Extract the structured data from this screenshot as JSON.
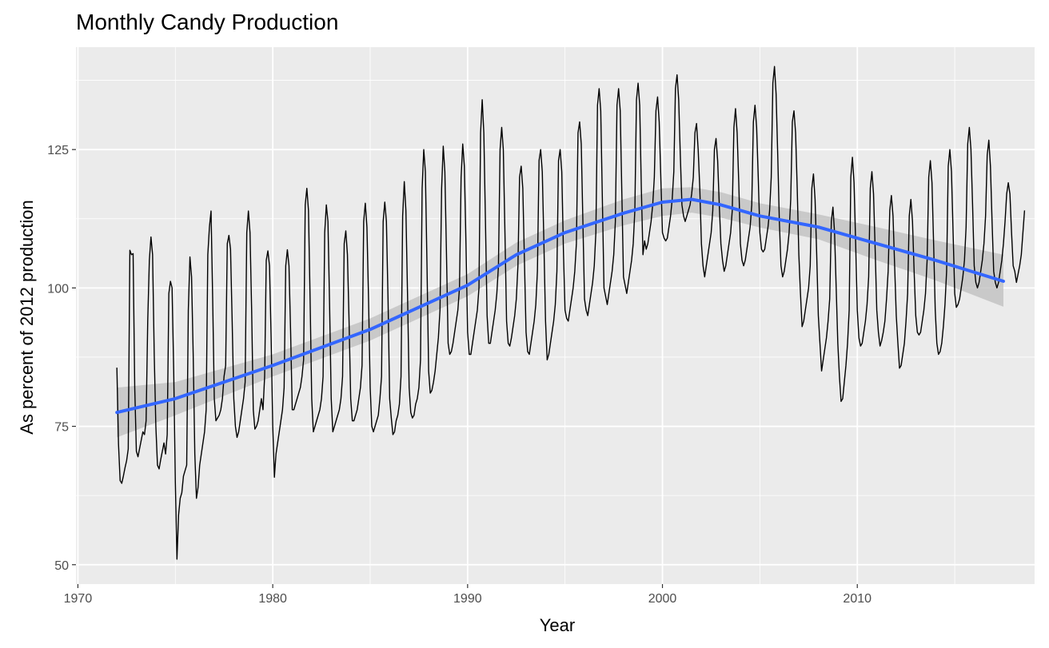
{
  "chart_data": {
    "type": "line",
    "title": "Monthly Candy Production",
    "xlabel": "Year",
    "ylabel": "As percent of 2012 production",
    "xlim": [
      1969.9,
      2019.1
    ],
    "ylim": [
      46.5,
      143.5
    ],
    "x_ticks": [
      1970,
      1980,
      1990,
      2000,
      2010
    ],
    "y_ticks": [
      50,
      75,
      100,
      125
    ],
    "grid": true,
    "legend": "none",
    "colors": {
      "panel": "#ebebeb",
      "grid_major": "#ffffff",
      "series": "#000000",
      "smooth": "#3366ff",
      "ribbon": "#bdbdbd",
      "tick_text": "#4d4d4d"
    },
    "series": [
      {
        "values_note": "",
        "x_start": 1972.0,
        "x_step": 0.0833333,
        "values": [
          85.6,
          71.8,
          65.2,
          64.7,
          66.0,
          67.5,
          68.8,
          70.9,
          106.8,
          106.0,
          106.2,
          82.0,
          70.5,
          69.5,
          71.0,
          72.5,
          74.0,
          73.5,
          76.0,
          94.0,
          105.0,
          109.2,
          106.0,
          88.0,
          75.0,
          68.0,
          67.3,
          69.0,
          70.5,
          72.0,
          70.0,
          73.5,
          99.0,
          101.2,
          100.0,
          85.0,
          65.0,
          51.0,
          59.0,
          62.0,
          63.0,
          66.0,
          67.0,
          68.0,
          96.0,
          105.6,
          102.0,
          88.0,
          70.0,
          62.0,
          64.0,
          68.0,
          70.0,
          72.0,
          74.0,
          78.0,
          106.0,
          111.0,
          113.9,
          98.0,
          80.0,
          76.0,
          76.5,
          77.0,
          78.0,
          80.0,
          84.0,
          86.0,
          108.0,
          109.5,
          107.0,
          94.0,
          80.0,
          75.0,
          73.0,
          74.0,
          76.0,
          78.0,
          80.0,
          83.0,
          110.0,
          113.9,
          110.0,
          96.0,
          78.0,
          74.5,
          75.0,
          76.0,
          78.0,
          80.0,
          78.0,
          84.0,
          105.0,
          106.7,
          104.0,
          91.0,
          75.0,
          65.8,
          70.0,
          72.0,
          74.0,
          76.0,
          78.0,
          82.0,
          104.0,
          106.9,
          104.0,
          92.0,
          78.0,
          78.0,
          79.0,
          80.0,
          81.0,
          82.0,
          84.0,
          87.0,
          115.0,
          118.0,
          114.0,
          98.0,
          80.0,
          74.0,
          75.0,
          76.0,
          77.0,
          78.0,
          80.0,
          84.0,
          110.0,
          115.0,
          112.0,
          97.0,
          80.0,
          74.0,
          75.0,
          76.0,
          77.0,
          78.0,
          80.0,
          84.0,
          108.0,
          110.3,
          106.0,
          94.0,
          80.0,
          76.0,
          76.0,
          77.0,
          78.0,
          80.0,
          82.0,
          86.0,
          112.0,
          115.3,
          111.0,
          98.0,
          82.0,
          75.0,
          74.0,
          75.0,
          76.0,
          77.0,
          80.0,
          84.0,
          112.0,
          115.5,
          112.0,
          98.0,
          80.0,
          76.5,
          73.5,
          74.0,
          76.0,
          77.0,
          79.0,
          84.0,
          113.0,
          119.2,
          114.0,
          99.0,
          82.0,
          77.5,
          76.5,
          77.0,
          79.0,
          80.0,
          82.0,
          87.0,
          118.0,
          125.0,
          121.0,
          104.0,
          85.0,
          81.0,
          81.5,
          83.0,
          85.0,
          88.0,
          91.0,
          96.0,
          118.0,
          125.6,
          121.0,
          106.0,
          90.0,
          88.0,
          88.5,
          90.0,
          92.0,
          94.0,
          96.0,
          100.0,
          120.0,
          126.0,
          122.0,
          108.0,
          92.0,
          88.0,
          88.0,
          90.0,
          92.0,
          94.0,
          96.0,
          100.0,
          128.0,
          134.0,
          128.0,
          112.0,
          95.0,
          90.0,
          90.0,
          92.0,
          94.0,
          96.0,
          99.0,
          104.0,
          125.0,
          129.0,
          125.0,
          110.0,
          94.0,
          90.0,
          89.5,
          91.0,
          93.0,
          95.0,
          98.0,
          104.0,
          120.0,
          122.0,
          118.0,
          105.0,
          92.0,
          88.5,
          88.0,
          90.0,
          92.0,
          94.0,
          97.0,
          103.0,
          123.0,
          125.0,
          121.0,
          108.0,
          94.0,
          87.0,
          88.0,
          90.0,
          92.0,
          94.0,
          97.0,
          103.0,
          123.0,
          125.0,
          121.0,
          107.0,
          96.0,
          94.5,
          94.0,
          96.0,
          98.0,
          100.0,
          103.0,
          108.0,
          128.0,
          130.0,
          126.0,
          112.0,
          98.0,
          96.0,
          95.0,
          97.0,
          99.0,
          101.0,
          104.0,
          110.0,
          133.0,
          136.0,
          132.0,
          116.0,
          100.0,
          98.5,
          97.0,
          99.0,
          101.0,
          103.0,
          106.0,
          112.0,
          133.0,
          136.0,
          132.0,
          117.0,
          102.0,
          100.5,
          99.0,
          101.0,
          103.0,
          105.0,
          108.0,
          114.0,
          134.0,
          137.0,
          133.0,
          118.0,
          106.0,
          108.5,
          107.0,
          108.0,
          110.0,
          112.0,
          115.0,
          120.0,
          132.0,
          134.5,
          130.0,
          120.0,
          110.0,
          109.0,
          108.5,
          109.0,
          111.0,
          113.0,
          116.0,
          121.0,
          136.0,
          138.5,
          134.0,
          124.0,
          115.0,
          113.0,
          112.0,
          113.0,
          114.0,
          115.0,
          117.0,
          120.0,
          128.0,
          129.7,
          125.0,
          118.0,
          108.0,
          104.0,
          102.0,
          104.0,
          106.0,
          108.0,
          110.0,
          114.0,
          125.0,
          127.0,
          123.0,
          115.0,
          108.0,
          105.0,
          103.0,
          104.0,
          106.0,
          108.0,
          110.0,
          114.0,
          129.0,
          132.4,
          128.0,
          119.0,
          108.0,
          105.0,
          104.0,
          105.0,
          107.0,
          109.0,
          111.0,
          115.0,
          130.0,
          133.0,
          129.0,
          120.0,
          110.0,
          107.0,
          106.5,
          107.0,
          109.0,
          111.0,
          114.0,
          120.0,
          137.0,
          140.0,
          135.0,
          124.0,
          112.0,
          104.0,
          102.0,
          103.0,
          105.0,
          107.0,
          110.0,
          116.0,
          130.0,
          132.0,
          128.0,
          118.0,
          106.0,
          99.0,
          93.0,
          94.0,
          96.0,
          98.0,
          100.0,
          104.0,
          118.0,
          120.6,
          116.0,
          106.0,
          95.0,
          90.0,
          85.0,
          87.0,
          89.0,
          91.0,
          94.0,
          98.0,
          112.0,
          114.6,
          110.0,
          100.0,
          90.0,
          84.0,
          79.5,
          80.0,
          83.0,
          86.0,
          90.0,
          96.0,
          120.0,
          123.6,
          119.0,
          108.0,
          96.0,
          91.0,
          89.5,
          90.0,
          92.0,
          94.0,
          97.0,
          102.0,
          118.0,
          121.0,
          117.0,
          107.0,
          96.0,
          92.0,
          89.5,
          90.5,
          92.0,
          94.0,
          98.0,
          103.0,
          114.0,
          116.7,
          113.0,
          104.0,
          95.0,
          90.0,
          85.5,
          86.0,
          88.0,
          90.0,
          94.0,
          99.0,
          113.0,
          116.0,
          112.0,
          103.0,
          95.0,
          92.0,
          91.5,
          92.0,
          94.0,
          96.0,
          99.0,
          105.0,
          120.0,
          123.0,
          119.0,
          108.0,
          96.0,
          90.0,
          88.0,
          88.5,
          90.0,
          93.0,
          97.0,
          103.0,
          122.0,
          125.0,
          121.0,
          110.0,
          99.0,
          96.5,
          97.0,
          98.0,
          100.0,
          102.0,
          105.0,
          111.0,
          126.0,
          129.0,
          125.0,
          115.0,
          104.0,
          101.0,
          100.0,
          101.0,
          103.0,
          105.0,
          108.0,
          113.0,
          124.0,
          126.7,
          122.0,
          112.0,
          103.0,
          101.0,
          100.0,
          101.0,
          103.0,
          105.0,
          108.0,
          112.0,
          117.0,
          119.0,
          117.0,
          110.0,
          104.0,
          103.0,
          101.0,
          102.5,
          104.0,
          106.0,
          110.0,
          114.0
        ]
      }
    ],
    "smooth": {
      "x": [
        1972.0,
        1975.0,
        1980.0,
        1985.0,
        1990.0,
        1992.5,
        1995.0,
        1998.0,
        2000.0,
        2001.5,
        2003.0,
        2005.0,
        2008.0,
        2011.0,
        2014.0,
        2017.5
      ],
      "y": [
        77.5,
        80.0,
        86.0,
        92.5,
        100.5,
        106.0,
        110.0,
        113.5,
        115.5,
        116.0,
        115.0,
        113.0,
        111.0,
        108.0,
        105.0,
        101.2
      ],
      "upper": [
        82.0,
        83.0,
        88.0,
        94.5,
        102.5,
        108.2,
        112.2,
        116.0,
        118.0,
        118.2,
        117.3,
        115.3,
        113.3,
        111.0,
        108.6,
        106.0
      ],
      "lower": [
        73.0,
        77.0,
        84.0,
        90.5,
        98.5,
        104.0,
        108.0,
        111.3,
        113.0,
        113.6,
        112.7,
        110.9,
        108.8,
        105.0,
        101.4,
        96.6
      ]
    }
  }
}
